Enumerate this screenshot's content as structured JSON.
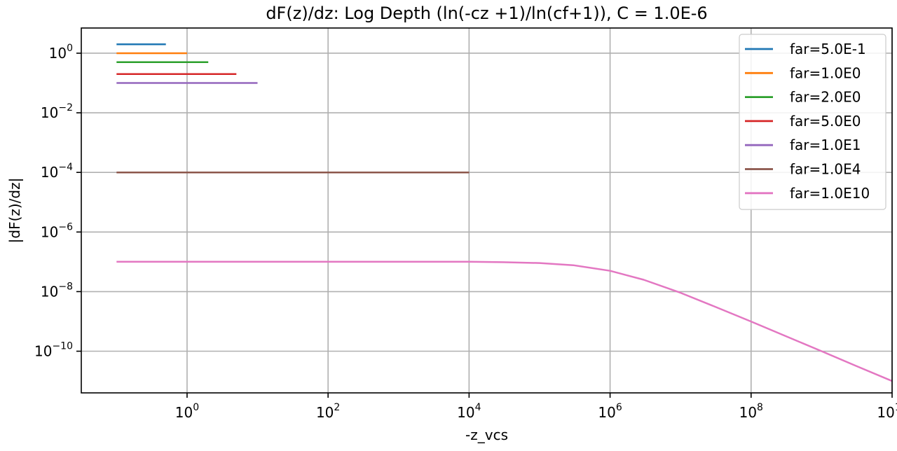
{
  "chart_data": {
    "type": "line",
    "title": "dF(z)/dz: Log Depth (ln(-cz +1)/ln(cf+1)), C = 1.0E-6",
    "xlabel": "-z_vcs",
    "ylabel": "|dF(z)/dz|",
    "xscale": "log",
    "yscale": "log",
    "xlim": [
      0.0316,
      10000000000.0
    ],
    "ylim": [
      4e-12,
      7
    ],
    "xticks": [
      {
        "value": 1,
        "base": "10",
        "exp": "0"
      },
      {
        "value": 100,
        "base": "10",
        "exp": "2"
      },
      {
        "value": 10000,
        "base": "10",
        "exp": "4"
      },
      {
        "value": 1000000,
        "base": "10",
        "exp": "6"
      },
      {
        "value": 100000000,
        "base": "10",
        "exp": "8"
      },
      {
        "value": 10000000000,
        "base": "10",
        "exp": "10"
      }
    ],
    "yticks": [
      {
        "value": 1,
        "base": "10",
        "exp": "0"
      },
      {
        "value": 0.01,
        "base": "10",
        "exp": "−2"
      },
      {
        "value": 0.0001,
        "base": "10",
        "exp": "−4"
      },
      {
        "value": 1e-06,
        "base": "10",
        "exp": "−6"
      },
      {
        "value": 1e-08,
        "base": "10",
        "exp": "−8"
      },
      {
        "value": 1e-10,
        "base": "10",
        "exp": "−10"
      }
    ],
    "grid": true,
    "legend_position": "top-right",
    "series": [
      {
        "name": "far=5.0E-1",
        "color": "#1f77b4",
        "x_start": 0.1,
        "x_end": 0.5,
        "constant_y": 2.0
      },
      {
        "name": "far=1.0E0",
        "color": "#ff7f0e",
        "x_start": 0.1,
        "x_end": 1.0,
        "constant_y": 1.0
      },
      {
        "name": "far=2.0E0",
        "color": "#2ca02c",
        "x_start": 0.1,
        "x_end": 2.0,
        "constant_y": 0.5
      },
      {
        "name": "far=5.0E0",
        "color": "#d62728",
        "x_start": 0.1,
        "x_end": 5.0,
        "constant_y": 0.2
      },
      {
        "name": "far=1.0E1",
        "color": "#9467bd",
        "x_start": 0.1,
        "x_end": 10.0,
        "constant_y": 0.1
      },
      {
        "name": "far=1.0E4",
        "color": "#8c564b",
        "x_start": 0.1,
        "x_end": 10000.0,
        "constant_y": 0.0001
      },
      {
        "name": "far=1.0E10",
        "color": "#e377c2",
        "x": [
          0.1,
          1,
          10,
          100,
          1000,
          10000,
          30000,
          100000,
          300000,
          1000000,
          3000000,
          10000000,
          30000000,
          100000000,
          300000000,
          1000000000,
          3000000000,
          10000000000
        ],
        "y": [
          1e-07,
          1e-07,
          1e-07,
          1e-07,
          1e-07,
          1e-07,
          9.7e-08,
          9.1e-08,
          7.7e-08,
          5e-08,
          2.5e-08,
          9.1e-09,
          3.2e-09,
          9.9e-10,
          3.3e-10,
          1e-10,
          3.3e-11,
          1e-11
        ]
      }
    ]
  }
}
